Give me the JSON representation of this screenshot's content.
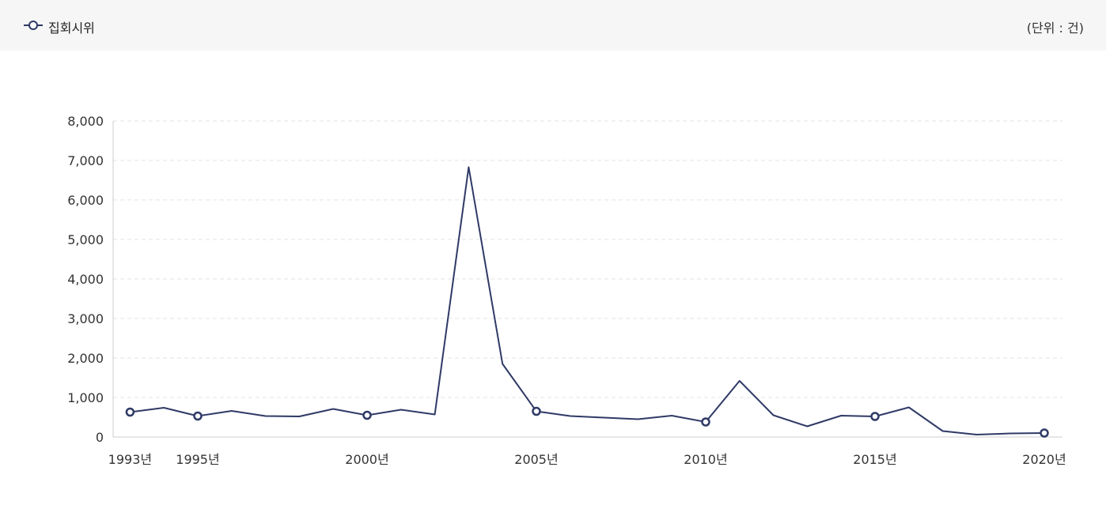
{
  "legend": {
    "series_label": "집회시위",
    "unit": "(단위 : 건)"
  },
  "colors": {
    "series": "#2f3a66",
    "grid": "#e3e3e3",
    "axis": "#cccccc"
  },
  "chart_data": {
    "type": "line",
    "title": "",
    "xlabel": "",
    "ylabel": "",
    "ylim": [
      0,
      8000
    ],
    "y_ticks": [
      0,
      1000,
      2000,
      3000,
      4000,
      5000,
      6000,
      7000,
      8000
    ],
    "y_tick_labels": [
      "0",
      "1,000",
      "2,000",
      "3,000",
      "4,000",
      "5,000",
      "6,000",
      "7,000",
      "8,000"
    ],
    "x_tick_labels": [
      {
        "year": 1993,
        "label": "1993년"
      },
      {
        "year": 1995,
        "label": "1995년"
      },
      {
        "year": 2000,
        "label": "2000년"
      },
      {
        "year": 2005,
        "label": "2005년"
      },
      {
        "year": 2010,
        "label": "2010년"
      },
      {
        "year": 2015,
        "label": "2015년"
      },
      {
        "year": 2020,
        "label": "2020년"
      }
    ],
    "grid": true,
    "legend_position": "top-left",
    "series": [
      {
        "name": "집회시위",
        "x": [
          1993,
          1994,
          1995,
          1996,
          1997,
          1998,
          1999,
          2000,
          2001,
          2002,
          2003,
          2004,
          2005,
          2006,
          2007,
          2008,
          2009,
          2010,
          2011,
          2012,
          2013,
          2014,
          2015,
          2016,
          2017,
          2018,
          2019,
          2020
        ],
        "values": [
          630,
          740,
          530,
          660,
          530,
          520,
          710,
          550,
          690,
          570,
          6830,
          1850,
          650,
          530,
          490,
          450,
          540,
          380,
          1420,
          550,
          270,
          540,
          520,
          750,
          150,
          60,
          90,
          100
        ],
        "marked_years": [
          1993,
          1995,
          2000,
          2005,
          2010,
          2015,
          2020
        ]
      }
    ]
  }
}
